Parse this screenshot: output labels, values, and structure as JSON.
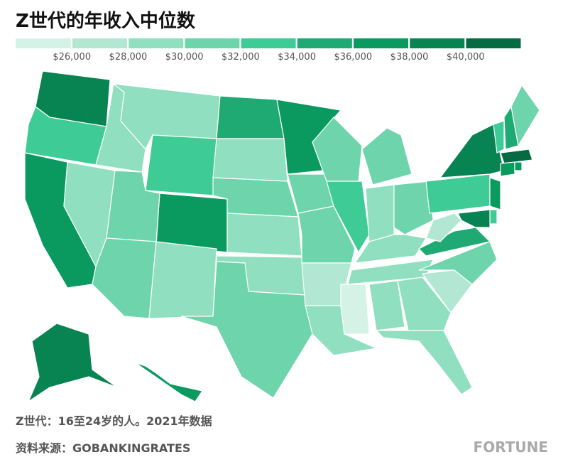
{
  "chart_data": {
    "type": "choropleth",
    "title": "Z世代的年收入中位数",
    "colors": [
      "#d4f2e6",
      "#b2e8d3",
      "#8fdfc0",
      "#6dd4ac",
      "#3fcb95",
      "#1faa74",
      "#0a9a5f",
      "#088352",
      "#066a43"
    ],
    "xlim": [
      24000,
      42000
    ],
    "xticks": [
      {
        "value": 26000,
        "label": "$26,000"
      },
      {
        "value": 28000,
        "label": "$28,000"
      },
      {
        "value": 30000,
        "label": "$30,000"
      },
      {
        "value": 32000,
        "label": "$32,000"
      },
      {
        "value": 34000,
        "label": "$34,000"
      },
      {
        "value": 36000,
        "label": "$36,000"
      },
      {
        "value": 38000,
        "label": "$38,000"
      },
      {
        "value": 40000,
        "label": "$40,000"
      }
    ],
    "values": [
      39000,
      33000,
      37000,
      29000,
      29000,
      29000,
      33000,
      31000,
      37000,
      31000,
      29000,
      35000,
      29000,
      31000,
      29000,
      29000,
      31000,
      37000,
      31000,
      31000,
      27000,
      29000,
      25000,
      31000,
      33000,
      31000,
      29000,
      31000,
      29000,
      29000,
      29000,
      29000,
      29000,
      27000,
      31000,
      35000,
      27000,
      33000,
      39000,
      33000,
      35000,
      31000,
      41000,
      37000,
      37000,
      37000,
      33000,
      39000,
      39000,
      37000
    ],
    "footnote": "Z世代：16至24岁的人。2021年数据",
    "source": "资料来源：GOBANKINGRATES",
    "brand": "FORTUNE"
  }
}
